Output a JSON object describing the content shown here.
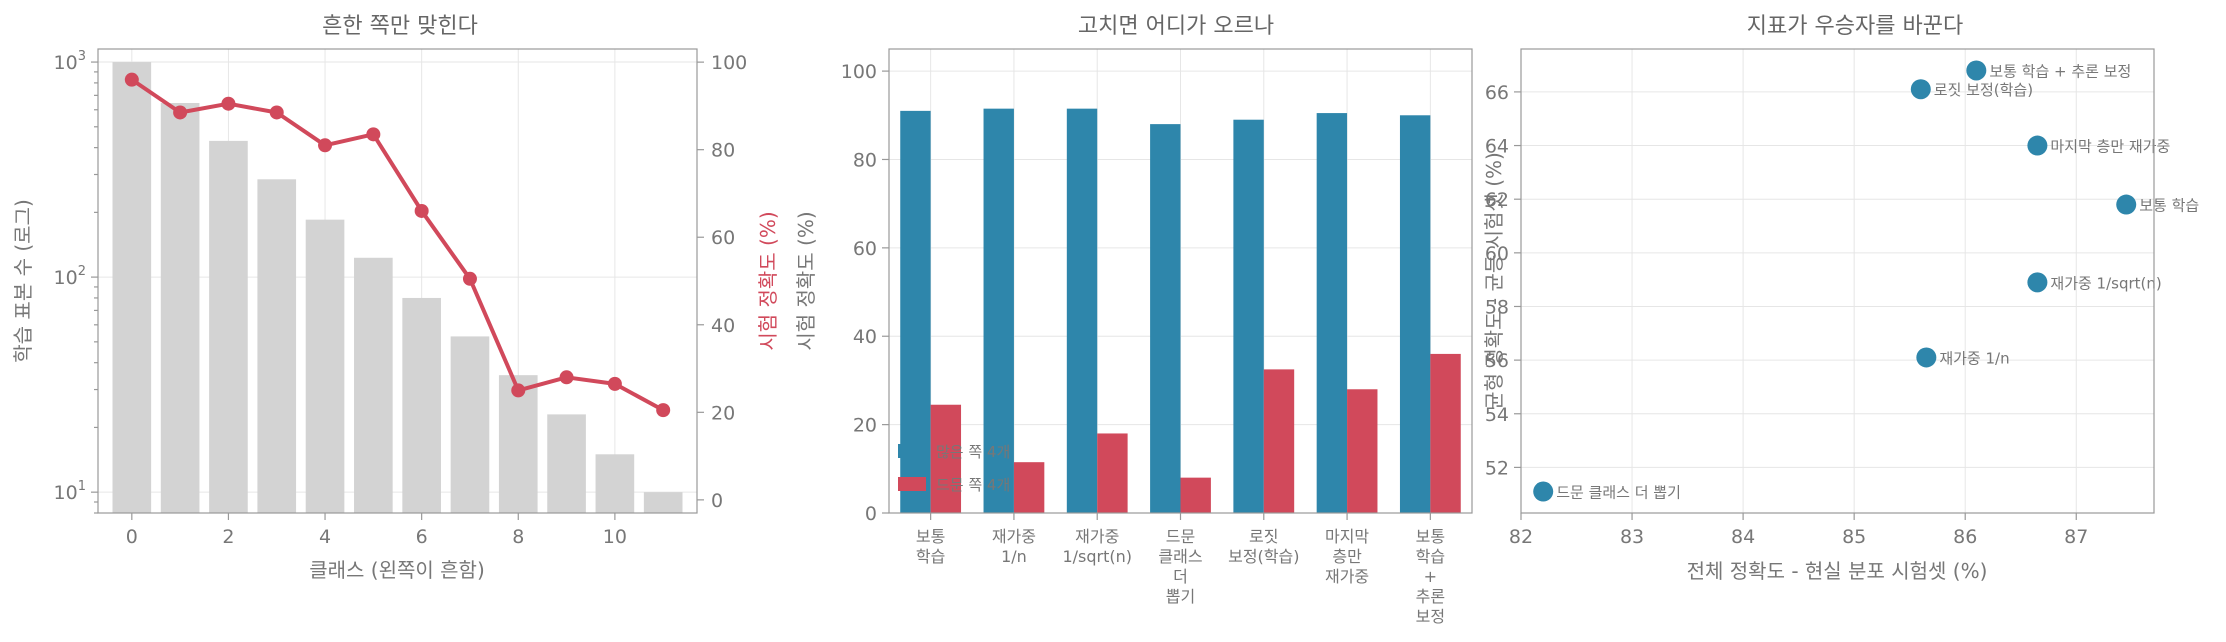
{
  "chart_data": [
    {
      "type": "bar",
      "title": "흔한 쪽만 맞힌다",
      "xlabel": "클래스 (왼쪽이 흔함)",
      "ylabel": "학습 표본 수 (로그)",
      "ylabel_right": "시험 정확도 (%)",
      "yscale": "log",
      "ylim": [
        8,
        1150
      ],
      "y_ticks": [
        {
          "value": 10,
          "base": "10",
          "exp": "1"
        },
        {
          "value": 100,
          "base": "10",
          "exp": "2"
        },
        {
          "value": 1000,
          "base": "10",
          "exp": "3"
        }
      ],
      "ylim_right": [
        -3,
        103
      ],
      "y_ticks_right": [
        "0",
        "20",
        "40",
        "60",
        "80",
        "100"
      ],
      "xlim": [
        -0.7,
        11.7
      ],
      "x_ticks": [
        "0",
        "2",
        "4",
        "6",
        "8",
        "10"
      ],
      "bar_series": {
        "x": [
          0,
          1,
          2,
          3,
          4,
          5,
          6,
          7,
          8,
          9,
          10,
          11
        ],
        "values": [
          1000,
          645,
          430,
          285,
          185,
          123,
          80,
          53,
          35,
          23,
          15,
          10
        ],
        "color": "#d3d3d3"
      },
      "line_series": {
        "x": [
          0,
          1,
          2,
          3,
          4,
          5,
          6,
          7,
          8,
          9,
          10,
          11
        ],
        "values": [
          96,
          88.5,
          90.5,
          88.5,
          81,
          83.5,
          66,
          50.5,
          25,
          28,
          26.5,
          20.5
        ],
        "color": "#d1495b"
      },
      "grid": true
    },
    {
      "type": "bar",
      "title": "고치면 어디가 오르나",
      "ylabel": "시험 정확도 (%)",
      "ylim": [
        0,
        105
      ],
      "y_ticks": [
        "0",
        "20",
        "40",
        "60",
        "80",
        "100"
      ],
      "categories": [
        [
          "보통",
          "학습"
        ],
        [
          "재가중",
          "1/n"
        ],
        [
          "재가중",
          "1/sqrt(n)"
        ],
        [
          "드문",
          "클래스",
          "더",
          "뽑기"
        ],
        [
          "로짓",
          "보정(학습)"
        ],
        [
          "마지막",
          "층만",
          "재가중"
        ],
        [
          "보통",
          "학습",
          "+",
          "추론",
          "보정"
        ]
      ],
      "series": [
        {
          "name": "많은 쪽 4개",
          "values": [
            91,
            91.5,
            91.5,
            88,
            89,
            90.5,
            90
          ],
          "color": "#2e86ab"
        },
        {
          "name": "드문 쪽 4개",
          "values": [
            24.5,
            11.5,
            18,
            8,
            32.5,
            28,
            36
          ],
          "color": "#d1495b"
        }
      ],
      "legend": "lower-left",
      "grid": true
    },
    {
      "type": "scatter",
      "title": "지표가 우승자를 바꾼다",
      "xlabel": "전체 정확도 - 현실 분포 시험셋 (%)",
      "ylabel": "균형 정확도 - 균등 시험셋 (%)",
      "xlim": [
        82,
        87.7
      ],
      "ylim": [
        50.3,
        67.6
      ],
      "x_ticks": [
        "82",
        "83",
        "84",
        "85",
        "86",
        "87"
      ],
      "y_ticks": [
        "52",
        "54",
        "56",
        "58",
        "60",
        "62",
        "64",
        "66"
      ],
      "points": [
        {
          "label": "보통 학습 + 추론 보정",
          "x": 86.1,
          "y": 66.8
        },
        {
          "label": "로짓 보정(학습)",
          "x": 85.6,
          "y": 66.1
        },
        {
          "label": "마지막 층만 재가중",
          "x": 86.65,
          "y": 64.0
        },
        {
          "label": "보통 학습",
          "x": 87.45,
          "y": 61.8
        },
        {
          "label": "재가중 1/sqrt(n)",
          "x": 86.65,
          "y": 58.9
        },
        {
          "label": "재가중 1/n",
          "x": 85.65,
          "y": 56.1
        },
        {
          "label": "드문 클래스 더 뽑기",
          "x": 82.2,
          "y": 51.1
        }
      ],
      "color": "#2e86ab",
      "grid": true
    }
  ]
}
